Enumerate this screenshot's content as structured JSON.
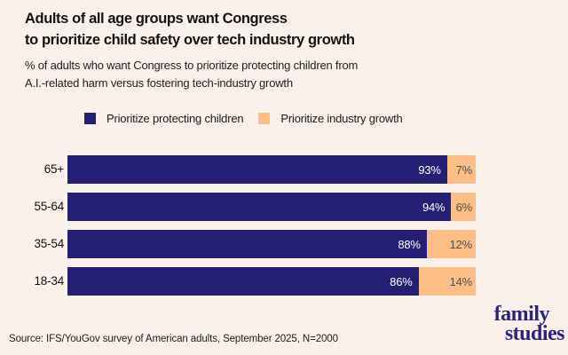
{
  "header": {
    "title_line1": "Adults of all age groups want Congress",
    "title_line2": "to prioritize child safety over tech industry growth",
    "subtitle_line1": "% of adults who want Congress to prioritize protecting children from",
    "subtitle_line2": "A.I.-related harm versus fostering tech-industry growth"
  },
  "chart_data": {
    "type": "bar",
    "orientation": "horizontal",
    "stacked": true,
    "title": "Adults of all age groups want Congress to prioritize child safety over tech industry growth",
    "subtitle": "% of adults who want Congress to prioritize protecting children from A.I.-related harm versus fostering tech-industry growth",
    "categories": [
      "65+",
      "55-64",
      "35-54",
      "18-34"
    ],
    "series": [
      {
        "name": "Prioritize protecting children",
        "color": "#241f73",
        "values": [
          93,
          94,
          88,
          86
        ],
        "labels": [
          "93%",
          "94%",
          "88%",
          "86%"
        ]
      },
      {
        "name": "Prioritize industry growth",
        "color": "#fcbe85",
        "values": [
          7,
          6,
          12,
          14
        ],
        "labels": [
          "7%",
          "6%",
          "12%",
          "14%"
        ]
      }
    ],
    "value_format": "percent",
    "xlim": [
      0,
      100
    ],
    "grid": false,
    "legend_position": "top"
  },
  "footer": {
    "source": "Source: IFS/YouGov survey of American adults, September 2025, N=2000",
    "logo_line1": "family",
    "logo_line2": "studies"
  },
  "colors": {
    "background": "#fcf1ea",
    "primary": "#241f73",
    "secondary": "#fcbe85",
    "logo": "#2a2480"
  }
}
